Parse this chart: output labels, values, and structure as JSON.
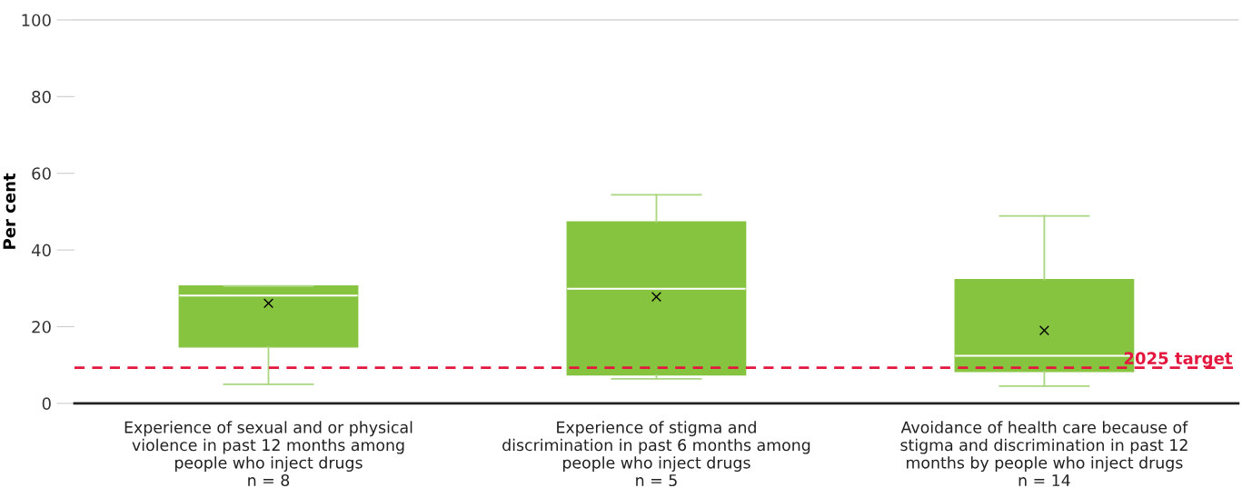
{
  "chart_data": {
    "type": "box",
    "ylabel": "Per cent",
    "categories": [
      "Experience of sexual and or physical\nviolence in past 12 months among\npeople who inject drugs\nn = 8",
      "Experience of stigma and\ndiscrimination in past 6 months among\npeople who inject drugs\nn = 5",
      "Avoidance of health care because of\nstigma and discrimination in past 12\nmonths by people who inject drugs\nn = 14"
    ],
    "series": [
      {
        "color": "#86c440",
        "boxes": [
          {
            "low": 5.0,
            "q1": 14.7,
            "median": 28.1,
            "q3": 30.6,
            "high": 30.6,
            "mean": 26.1
          },
          {
            "low": 6.4,
            "q1": 7.4,
            "median": 29.9,
            "q3": 47.3,
            "high": 54.4,
            "mean": 27.8
          },
          {
            "low": 4.5,
            "q1": 8.3,
            "median": 12.4,
            "q3": 32.3,
            "high": 48.9,
            "mean": 19.0
          }
        ]
      }
    ],
    "ylim": [
      0,
      100
    ],
    "yticks": [
      0,
      20,
      40,
      60,
      80,
      100
    ],
    "ref_lines": [
      {
        "axis": "y",
        "value": 9.3,
        "label": "2025 target",
        "color": "#e4173e",
        "line_style": "dashed"
      }
    ],
    "grid": false,
    "legend": false
  }
}
